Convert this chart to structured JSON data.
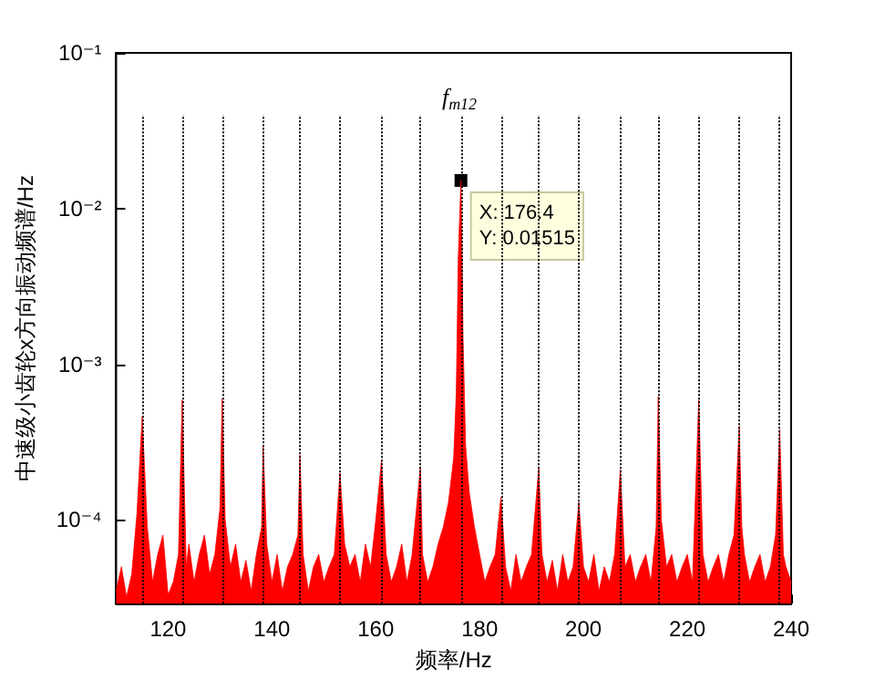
{
  "chart_data": {
    "type": "area",
    "xlabel": "频率/Hz",
    "ylabel": "中速级小齿轮x方向振动频谱/Hz",
    "x": [
      110,
      111,
      112,
      113,
      114,
      115.0,
      116,
      117,
      118,
      119,
      120,
      121,
      122,
      122.7,
      123.5,
      124,
      125,
      126,
      127,
      128,
      129,
      130,
      130.4,
      131,
      132,
      133,
      134,
      135,
      136,
      137,
      138,
      138.3,
      139,
      140,
      141,
      142,
      143,
      144,
      145,
      145.4,
      146,
      147,
      148,
      149,
      150,
      151,
      152,
      153.1,
      154,
      155,
      156,
      157,
      158,
      159,
      160,
      161.1,
      162,
      163,
      164,
      165,
      166,
      167,
      168.6,
      169,
      170,
      171,
      172,
      173,
      174,
      175,
      175.5,
      175.9,
      176.4,
      176.8,
      177.3,
      178,
      179,
      180,
      181,
      182,
      183,
      184.1,
      185,
      186,
      187,
      188,
      189,
      190,
      191.4,
      192,
      193,
      194,
      195,
      196,
      197,
      198,
      199.1,
      200,
      201,
      202,
      203,
      204,
      205,
      206,
      207.1,
      208,
      209,
      210,
      211,
      212,
      213,
      214,
      214.4,
      215,
      216,
      217,
      218,
      219,
      220,
      221,
      222.2,
      223,
      224,
      225,
      226,
      227,
      228,
      229,
      230.0,
      230.5,
      231,
      232,
      233,
      234,
      235,
      236,
      237,
      237.8,
      238.5,
      239,
      240
    ],
    "series": [
      {
        "color": "#ff0000",
        "values": [
          3.5e-05,
          5e-05,
          3.2e-05,
          4.5e-05,
          0.00011,
          0.00046,
          9e-05,
          4e-05,
          6e-05,
          8e-05,
          3.3e-05,
          4e-05,
          6e-05,
          0.00059,
          5e-05,
          7e-05,
          4e-05,
          6e-05,
          8e-05,
          4.5e-05,
          6e-05,
          0.00012,
          0.0006,
          0.0001,
          5e-05,
          7e-05,
          4e-05,
          5.5e-05,
          3.5e-05,
          6e-05,
          9e-05,
          0.0003,
          7e-05,
          4e-05,
          6e-05,
          3.5e-05,
          5e-05,
          6e-05,
          8e-05,
          0.00026,
          6e-05,
          3.5e-05,
          5e-05,
          6e-05,
          4e-05,
          5e-05,
          6e-05,
          0.0002,
          7e-05,
          5e-05,
          6e-05,
          4e-05,
          7e-05,
          5e-05,
          0.0001,
          0.00024,
          6e-05,
          4e-05,
          5e-05,
          7e-05,
          4e-05,
          6e-05,
          0.00022,
          6e-05,
          4e-05,
          5e-05,
          7e-05,
          9e-05,
          0.00013,
          0.00025,
          0.00065,
          0.005,
          0.01515,
          0.0015,
          0.0003,
          0.00015,
          9e-05,
          6e-05,
          4e-05,
          5e-05,
          6e-05,
          0.00014,
          5e-05,
          3.5e-05,
          6e-05,
          4e-05,
          5e-05,
          6e-05,
          0.00022,
          6e-05,
          4e-05,
          5.5e-05,
          3.5e-05,
          6e-05,
          4e-05,
          5e-05,
          0.00013,
          5e-05,
          4e-05,
          6e-05,
          3.5e-05,
          5e-05,
          4e-05,
          6e-05,
          0.00021,
          5e-05,
          6e-05,
          4e-05,
          5e-05,
          6e-05,
          4e-05,
          9e-05,
          0.00062,
          0.0001,
          5e-05,
          6e-05,
          4e-05,
          5e-05,
          6e-05,
          4e-05,
          0.00059,
          6e-05,
          4e-05,
          5e-05,
          6e-05,
          4e-05,
          6e-05,
          8e-05,
          0.0004,
          9e-05,
          6e-05,
          4e-05,
          5e-05,
          6e-05,
          4e-05,
          5e-05,
          8e-05,
          0.00038,
          6e-05,
          5e-05,
          4e-05
        ]
      }
    ],
    "log": "y",
    "xlim": [
      110,
      240
    ],
    "xticks": [
      120,
      140,
      160,
      180,
      200,
      220,
      240
    ],
    "ylim": [
      2.9e-05,
      0.1
    ],
    "yticks": [
      {
        "value": 0.0001,
        "label": "10⁻⁴"
      },
      {
        "value": 0.001,
        "label": "10⁻³"
      },
      {
        "value": 0.01,
        "label": "10⁻²"
      },
      {
        "value": 0.1,
        "label": "10⁻¹"
      }
    ],
    "grid": false,
    "marker": "none",
    "line_style": "solid",
    "ref_lines": [
      {
        "axis": "x",
        "value": 115.0,
        "color": "#000000",
        "line_style": "dotted"
      },
      {
        "axis": "x",
        "value": 122.7,
        "color": "#000000",
        "line_style": "dotted"
      },
      {
        "axis": "x",
        "value": 130.4,
        "color": "#000000",
        "line_style": "dotted"
      },
      {
        "axis": "x",
        "value": 138.3,
        "color": "#000000",
        "line_style": "dotted"
      },
      {
        "axis": "x",
        "value": 145.4,
        "color": "#000000",
        "line_style": "dotted"
      },
      {
        "axis": "x",
        "value": 153.1,
        "color": "#000000",
        "line_style": "dotted"
      },
      {
        "axis": "x",
        "value": 161.1,
        "color": "#000000",
        "line_style": "dotted"
      },
      {
        "axis": "x",
        "value": 168.6,
        "color": "#000000",
        "line_style": "dotted"
      },
      {
        "axis": "x",
        "value": 176.4,
        "color": "#000000",
        "line_style": "dotted"
      },
      {
        "axis": "x",
        "value": 184.1,
        "color": "#000000",
        "line_style": "dotted"
      },
      {
        "axis": "x",
        "value": 191.4,
        "color": "#000000",
        "line_style": "dotted"
      },
      {
        "axis": "x",
        "value": 199.1,
        "color": "#000000",
        "line_style": "dotted"
      },
      {
        "axis": "x",
        "value": 207.1,
        "color": "#000000",
        "line_style": "dotted"
      },
      {
        "axis": "x",
        "value": 214.4,
        "color": "#000000",
        "line_style": "dotted"
      },
      {
        "axis": "x",
        "value": 222.2,
        "color": "#000000",
        "line_style": "dotted"
      },
      {
        "axis": "x",
        "value": 230.0,
        "color": "#000000",
        "line_style": "dotted"
      },
      {
        "axis": "x",
        "value": 237.8,
        "color": "#000000",
        "line_style": "dotted"
      }
    ],
    "annotations": [
      "f$_{m12}$",
      {
        "text": "X: 176.4\nY: 0.01515",
        "x": 176.4,
        "y": 0.01515
      }
    ]
  }
}
